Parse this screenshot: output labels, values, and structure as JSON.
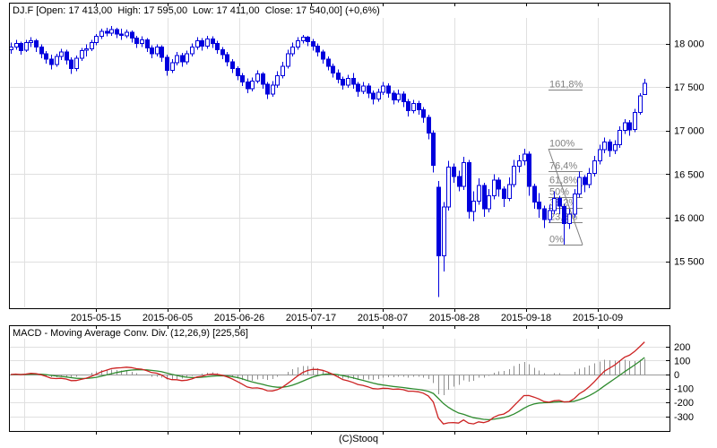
{
  "chart_data": {
    "type": "candlestick+macd",
    "symbol": "DJ.F",
    "title": "DJ.F [Open: 17 413,00  High: 17 595,00  Low: 17 411,00  Close: 17 540,00] (+0,6%)",
    "quote": {
      "open": "17 413,00",
      "high": "17 595,00",
      "low": "17 411,00",
      "close": "17 540,00",
      "change_pct": "+0,6%"
    },
    "footer": "(C)Stooq",
    "x_axis": {
      "tick_labels": [
        "2015-05-15",
        "2015-06-05",
        "2015-06-26",
        "2015-07-17",
        "2015-08-07",
        "2015-08-28",
        "2015-09-18",
        "2015-10-09"
      ]
    },
    "price_axis": {
      "values": [
        18000,
        17500,
        17000,
        16500,
        16000,
        15500
      ],
      "labels": [
        "18 000",
        "17 500",
        "17 000",
        "16 500",
        "16 000",
        "15 500"
      ]
    },
    "colors": {
      "candle": "#0000dd",
      "candle_up_fill": "#ffffff",
      "macd_line": "#cc2222",
      "signal_line": "#2e8b2e",
      "histogram": "#909090",
      "grid": "#e0e0e0",
      "zero_line": "#999999",
      "fib": "#808080",
      "border": "#000000",
      "text": "#000000"
    },
    "candles_ohlc": [
      [
        17930,
        18010,
        17880,
        17960
      ],
      [
        17960,
        18040,
        17930,
        18000
      ],
      [
        18000,
        18020,
        17870,
        17920
      ],
      [
        17920,
        18040,
        17900,
        18010
      ],
      [
        18010,
        18070,
        17960,
        18030
      ],
      [
        18030,
        18050,
        17900,
        17960
      ],
      [
        17960,
        17990,
        17830,
        17880
      ],
      [
        17880,
        17910,
        17770,
        17820
      ],
      [
        17820,
        17870,
        17700,
        17760
      ],
      [
        17760,
        17880,
        17730,
        17850
      ],
      [
        17850,
        17940,
        17810,
        17900
      ],
      [
        17900,
        17930,
        17760,
        17810
      ],
      [
        17810,
        17840,
        17650,
        17710
      ],
      [
        17710,
        17860,
        17680,
        17830
      ],
      [
        17830,
        17950,
        17800,
        17920
      ],
      [
        17920,
        17990,
        17850,
        17940
      ],
      [
        17940,
        18040,
        17910,
        18010
      ],
      [
        18010,
        18110,
        17980,
        18080
      ],
      [
        18080,
        18170,
        18050,
        18140
      ],
      [
        18140,
        18180,
        18080,
        18120
      ],
      [
        18120,
        18200,
        18090,
        18160
      ],
      [
        18160,
        18180,
        18060,
        18110
      ],
      [
        18110,
        18170,
        18040,
        18090
      ],
      [
        18090,
        18160,
        18060,
        18130
      ],
      [
        18130,
        18150,
        18010,
        18060
      ],
      [
        18060,
        18090,
        17950,
        18000
      ],
      [
        18000,
        18080,
        17960,
        18040
      ],
      [
        18040,
        18060,
        17900,
        17950
      ],
      [
        17950,
        17980,
        17830,
        17880
      ],
      [
        17880,
        17990,
        17850,
        17960
      ],
      [
        17960,
        17980,
        17790,
        17840
      ],
      [
        17840,
        17870,
        17630,
        17690
      ],
      [
        17690,
        17820,
        17660,
        17780
      ],
      [
        17780,
        17900,
        17750,
        17860
      ],
      [
        17860,
        17890,
        17730,
        17790
      ],
      [
        17790,
        17920,
        17760,
        17880
      ],
      [
        17880,
        18000,
        17850,
        17960
      ],
      [
        17960,
        18070,
        17930,
        18030
      ],
      [
        18030,
        18060,
        17920,
        17970
      ],
      [
        17970,
        18090,
        17940,
        18050
      ],
      [
        18050,
        18080,
        17950,
        18000
      ],
      [
        18000,
        18030,
        17880,
        17930
      ],
      [
        17930,
        17960,
        17820,
        17870
      ],
      [
        17870,
        17900,
        17740,
        17790
      ],
      [
        17790,
        17820,
        17660,
        17710
      ],
      [
        17710,
        17740,
        17580,
        17630
      ],
      [
        17630,
        17660,
        17510,
        17560
      ],
      [
        17560,
        17600,
        17430,
        17480
      ],
      [
        17480,
        17610,
        17450,
        17570
      ],
      [
        17570,
        17690,
        17540,
        17650
      ],
      [
        17650,
        17670,
        17480,
        17530
      ],
      [
        17530,
        17560,
        17360,
        17420
      ],
      [
        17420,
        17570,
        17390,
        17520
      ],
      [
        17520,
        17680,
        17490,
        17630
      ],
      [
        17630,
        17790,
        17600,
        17740
      ],
      [
        17740,
        17930,
        17710,
        17880
      ],
      [
        17880,
        18010,
        17850,
        17960
      ],
      [
        17960,
        18070,
        17930,
        18030
      ],
      [
        18030,
        18100,
        18000,
        18070
      ],
      [
        18070,
        18090,
        17970,
        18020
      ],
      [
        18020,
        18050,
        17920,
        17970
      ],
      [
        17970,
        18000,
        17850,
        17900
      ],
      [
        17900,
        17930,
        17770,
        17820
      ],
      [
        17820,
        17850,
        17690,
        17740
      ],
      [
        17740,
        17770,
        17610,
        17660
      ],
      [
        17660,
        17700,
        17540,
        17590
      ],
      [
        17590,
        17620,
        17470,
        17520
      ],
      [
        17520,
        17640,
        17490,
        17600
      ],
      [
        17600,
        17660,
        17480,
        17530
      ],
      [
        17530,
        17560,
        17390,
        17450
      ],
      [
        17450,
        17560,
        17420,
        17510
      ],
      [
        17510,
        17540,
        17370,
        17430
      ],
      [
        17430,
        17460,
        17300,
        17360
      ],
      [
        17360,
        17480,
        17330,
        17440
      ],
      [
        17440,
        17560,
        17410,
        17510
      ],
      [
        17510,
        17540,
        17380,
        17430
      ],
      [
        17430,
        17460,
        17300,
        17350
      ],
      [
        17350,
        17470,
        17320,
        17420
      ],
      [
        17420,
        17450,
        17270,
        17330
      ],
      [
        17330,
        17360,
        17160,
        17230
      ],
      [
        17230,
        17350,
        17200,
        17310
      ],
      [
        17310,
        17340,
        17180,
        17240
      ],
      [
        17240,
        17270,
        17090,
        17150
      ],
      [
        17150,
        17180,
        16900,
        16970
      ],
      [
        16970,
        17000,
        16520,
        16600
      ],
      [
        16350,
        16420,
        15090,
        15560
      ],
      [
        15560,
        16180,
        15380,
        16120
      ],
      [
        16120,
        16650,
        16080,
        16580
      ],
      [
        16580,
        16620,
        16400,
        16470
      ],
      [
        16470,
        16540,
        16300,
        16360
      ],
      [
        16360,
        16700,
        16320,
        16630
      ],
      [
        16630,
        16660,
        15990,
        16070
      ],
      [
        16070,
        16300,
        15960,
        16190
      ],
      [
        16190,
        16450,
        16150,
        16370
      ],
      [
        16370,
        16400,
        16010,
        16100
      ],
      [
        16100,
        16330,
        16060,
        16250
      ],
      [
        16250,
        16500,
        16210,
        16430
      ],
      [
        16430,
        16460,
        16240,
        16330
      ],
      [
        16330,
        16360,
        16120,
        16220
      ],
      [
        16220,
        16460,
        16190,
        16380
      ],
      [
        16380,
        16660,
        16350,
        16590
      ],
      [
        16590,
        16720,
        16520,
        16650
      ],
      [
        16650,
        16790,
        16600,
        16730
      ],
      [
        16730,
        16760,
        16250,
        16360
      ],
      [
        16360,
        16390,
        16100,
        16180
      ],
      [
        16180,
        16280,
        16000,
        16100
      ],
      [
        16100,
        16140,
        15880,
        15980
      ],
      [
        15980,
        16150,
        15940,
        16080
      ],
      [
        16080,
        16300,
        16040,
        16220
      ],
      [
        16220,
        16250,
        16040,
        16130
      ],
      [
        16130,
        16160,
        15690,
        15930
      ],
      [
        15930,
        16100,
        15870,
        16040
      ],
      [
        16040,
        16330,
        16000,
        16270
      ],
      [
        16270,
        16530,
        16230,
        16460
      ],
      [
        16460,
        16490,
        16290,
        16380
      ],
      [
        16380,
        16570,
        16340,
        16510
      ],
      [
        16510,
        16710,
        16470,
        16650
      ],
      [
        16650,
        16840,
        16610,
        16780
      ],
      [
        16780,
        16920,
        16740,
        16870
      ],
      [
        16870,
        16900,
        16700,
        16770
      ],
      [
        16770,
        16890,
        16730,
        16840
      ],
      [
        16840,
        17050,
        16800,
        17000
      ],
      [
        17000,
        17130,
        16960,
        17090
      ],
      [
        17090,
        17120,
        16940,
        17010
      ],
      [
        17010,
        17250,
        16980,
        17210
      ],
      [
        17210,
        17430,
        17180,
        17400
      ],
      [
        17413,
        17595,
        17411,
        17540
      ]
    ],
    "fibonacci": {
      "swing_high": 16790,
      "swing_low": 15690,
      "levels": [
        {
          "label": "161,8%",
          "value": 17470
        },
        {
          "label": "100%",
          "value": 16790
        },
        {
          "label": "76,4%",
          "value": 16530
        },
        {
          "label": "61,8%",
          "value": 16370
        },
        {
          "label": "50%",
          "value": 16240
        },
        {
          "label": "38,2%",
          "value": 16110
        },
        {
          "label": "23,6%",
          "value": 15950
        },
        {
          "label": "0%",
          "value": 15690
        }
      ]
    },
    "macd": {
      "title": "MACD - Moving Average Conv. Div. (12,26,9) [225,56]",
      "params": [
        12,
        26,
        9
      ],
      "current_values": "[225,56]",
      "axis": {
        "values": [
          200,
          100,
          0,
          -100,
          -200,
          -300
        ],
        "labels": [
          "200",
          "100",
          "0",
          "-100",
          "-200",
          "-300"
        ]
      }
    }
  }
}
